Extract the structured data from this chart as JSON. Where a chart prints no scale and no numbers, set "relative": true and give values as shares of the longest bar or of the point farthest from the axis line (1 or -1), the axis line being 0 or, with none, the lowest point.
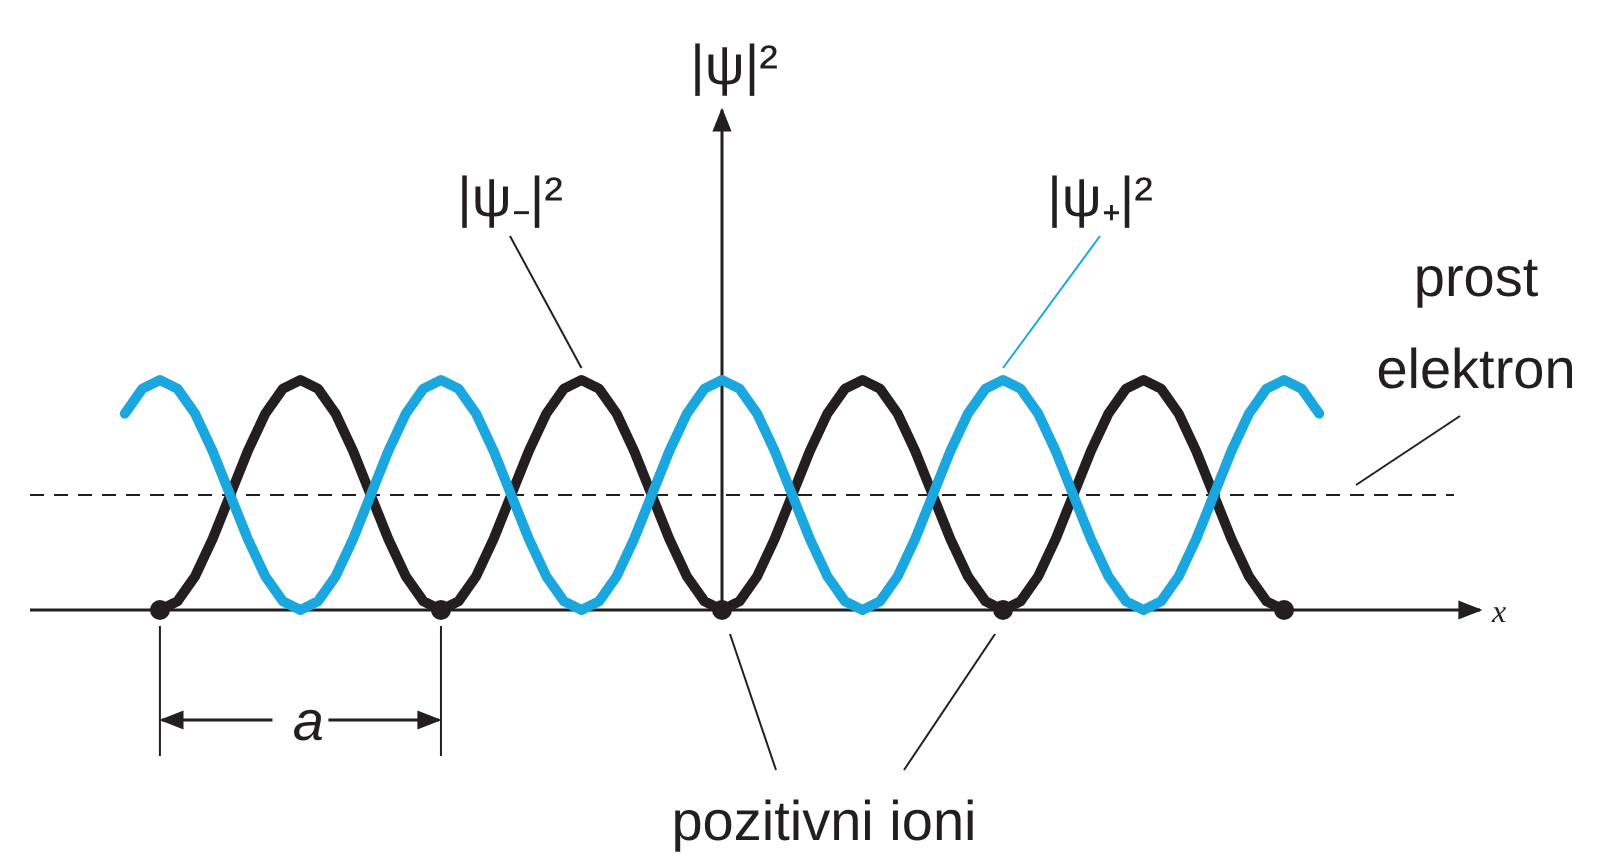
{
  "chart_data": {
    "type": "line",
    "relative": true,
    "legend": false,
    "grid": false,
    "categories": [
      null,
      null,
      null,
      null,
      null,
      null,
      null,
      null,
      null,
      null,
      null,
      null,
      null,
      null,
      null,
      null,
      null,
      null,
      null,
      null,
      null,
      null,
      null,
      null,
      null,
      null,
      null,
      null,
      null,
      null,
      null,
      null,
      null,
      null,
      null,
      null,
      null,
      null,
      null,
      null,
      null,
      null,
      null,
      null,
      null,
      null,
      null,
      null,
      null,
      null,
      null,
      null,
      null,
      null,
      null,
      null,
      null,
      null,
      null,
      null,
      null,
      null,
      null,
      null,
      null,
      null,
      null,
      null,
      null
    ],
    "series": [
      {
        "name": "|ψ₋|²",
        "color": "#231f20",
        "values": [
          null,
          null,
          0,
          0.038,
          0.146,
          0.309,
          0.5,
          0.691,
          0.854,
          0.962,
          1,
          0.962,
          0.854,
          0.691,
          0.5,
          0.309,
          0.146,
          0.038,
          0,
          0.038,
          0.146,
          0.309,
          0.5,
          0.691,
          0.854,
          0.962,
          1,
          0.962,
          0.854,
          0.691,
          0.5,
          0.309,
          0.146,
          0.038,
          0,
          0.038,
          0.146,
          0.309,
          0.5,
          0.691,
          0.854,
          0.962,
          1,
          0.962,
          0.854,
          0.691,
          0.5,
          0.309,
          0.146,
          0.038,
          0,
          0.038,
          0.146,
          0.309,
          0.5,
          0.691,
          0.854,
          0.962,
          1,
          0.962,
          0.854,
          0.691,
          0.5,
          0.309,
          0.146,
          0.038,
          0,
          null,
          null
        ]
      },
      {
        "name": "|ψ₊|²",
        "color": "#1aa7e0",
        "values": [
          0.854,
          0.962,
          1,
          0.962,
          0.854,
          0.691,
          0.5,
          0.309,
          0.146,
          0.038,
          0,
          0.038,
          0.146,
          0.309,
          0.5,
          0.691,
          0.854,
          0.962,
          1,
          0.962,
          0.854,
          0.691,
          0.5,
          0.309,
          0.146,
          0.038,
          0,
          0.038,
          0.146,
          0.309,
          0.5,
          0.691,
          0.854,
          0.962,
          1,
          0.962,
          0.854,
          0.691,
          0.5,
          0.309,
          0.146,
          0.038,
          0,
          0.038,
          0.146,
          0.309,
          0.5,
          0.691,
          0.854,
          0.962,
          1,
          0.962,
          0.854,
          0.691,
          0.5,
          0.309,
          0.146,
          0.038,
          0,
          0.038,
          0.146,
          0.309,
          0.5,
          0.691,
          0.854,
          0.962,
          1,
          0.962,
          0.854
        ]
      }
    ],
    "ref_lines": [
      {
        "axis": "y",
        "value": 0.5,
        "label": "prost elektron",
        "line_style": "dashed",
        "color": "#231f20"
      }
    ],
    "annotations": [
      "|ψ|²",
      "x",
      "a",
      "pozitivni ioni"
    ]
  }
}
